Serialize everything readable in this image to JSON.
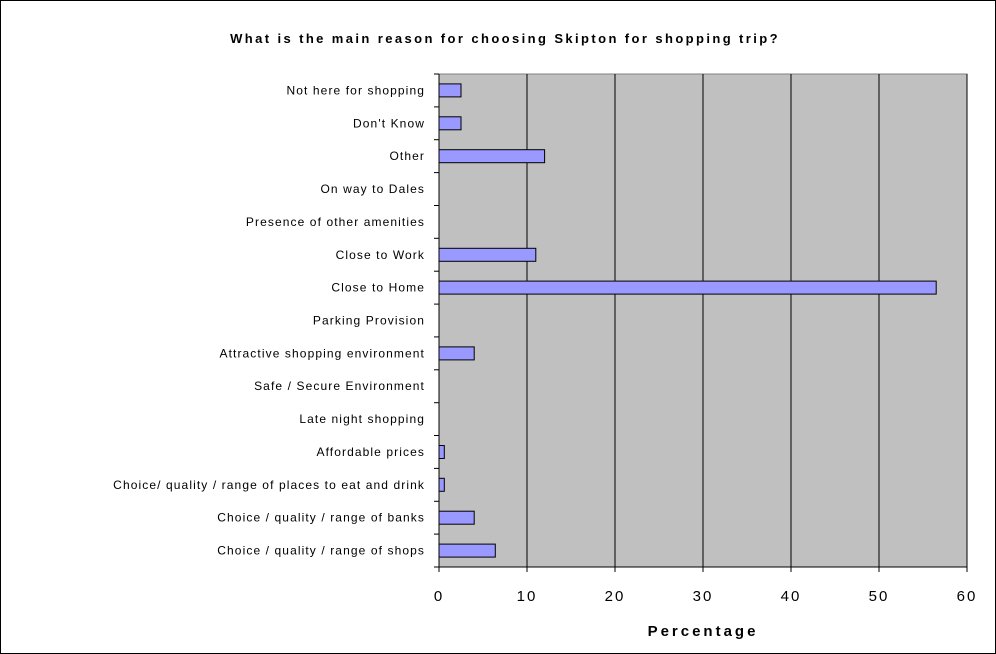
{
  "chart_data": {
    "type": "bar",
    "orientation": "horizontal",
    "title": "What is the main reason for choosing Skipton for shopping trip?",
    "xlabel": "Percentage",
    "ylabel": "",
    "xlim": [
      0,
      60
    ],
    "ticks": [
      "0",
      "10",
      "20",
      "30",
      "40",
      "50",
      "60"
    ],
    "tick_values": [
      0,
      10,
      20,
      30,
      40,
      50,
      60
    ],
    "grid": true,
    "legend": "none",
    "plot_background": "#c0c0c0",
    "bar_color": "#9999ff",
    "categories": [
      "Not here for shopping",
      "Don't Know",
      "Other",
      "On way to Dales",
      "Presence of other amenities",
      "Close to Work",
      "Close to Home",
      "Parking Provision",
      "Attractive shopping environment",
      "Safe / Secure Environment",
      "Late night shopping",
      "Affordable prices",
      "Choice/ quality / range of places to eat and drink",
      "Choice / quality / range of banks",
      "Choice / quality / range of shops"
    ],
    "values": [
      2.5,
      2.5,
      12.0,
      0,
      0,
      11.0,
      56.5,
      0,
      4.0,
      0,
      0,
      0.6,
      0.6,
      4.0,
      6.4
    ]
  }
}
